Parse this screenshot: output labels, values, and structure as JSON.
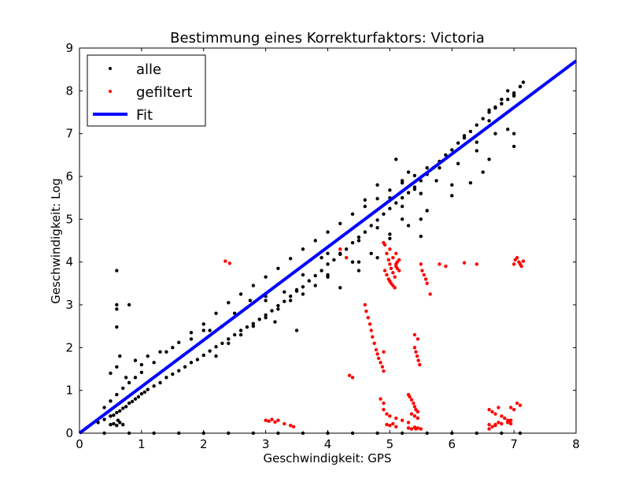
{
  "chart_data": {
    "type": "scatter",
    "title": "Bestimmung eines Korrekturfaktors: Victoria",
    "xlabel": "Geschwindigkeit: GPS",
    "ylabel": "Geschwindigkeit: Log",
    "xlim": [
      0,
      8
    ],
    "ylim": [
      0,
      9
    ],
    "xticks": [
      "0",
      "1",
      "2",
      "3",
      "4",
      "5",
      "6",
      "7",
      "8"
    ],
    "yticks": [
      "0",
      "1",
      "2",
      "3",
      "4",
      "5",
      "6",
      "7",
      "8",
      "9"
    ],
    "grid": false,
    "legend_position": "top-left",
    "colors": {
      "alle": "#000000",
      "gefiltert": "#ff0000",
      "fit": "#0000ff"
    },
    "series": [
      {
        "name": "alle",
        "kind": "points",
        "x": [
          0.3,
          0.4,
          0.5,
          0.55,
          0.6,
          0.65,
          0.7,
          0.75,
          0.8,
          0.85,
          0.9,
          0.95,
          1.0,
          1.05,
          1.1,
          1.2,
          1.3,
          1.4,
          1.5,
          1.6,
          1.7,
          1.8,
          1.9,
          2.0,
          2.1,
          2.2,
          2.3,
          2.4,
          2.5,
          2.6,
          2.7,
          2.8,
          2.9,
          3.0,
          3.1,
          3.2,
          3.3,
          3.4,
          3.5,
          3.6,
          3.7,
          3.8,
          3.9,
          4.0,
          4.1,
          4.2,
          4.3,
          4.4,
          4.5,
          4.6,
          4.7,
          4.8,
          4.9,
          5.0,
          5.1,
          5.2,
          5.3,
          5.4,
          5.5,
          5.6,
          5.7,
          5.8,
          5.9,
          6.0,
          6.1,
          6.2,
          6.3,
          6.4,
          6.5,
          6.6,
          6.7,
          6.8,
          6.9,
          7.0,
          7.1,
          7.15,
          0.4,
          0.5,
          0.6,
          0.7,
          0.8,
          0.9,
          1.0,
          1.2,
          1.4,
          1.6,
          1.8,
          2.0,
          2.2,
          2.4,
          2.6,
          2.8,
          3.0,
          3.2,
          3.4,
          3.6,
          3.8,
          4.0,
          4.2,
          4.4,
          4.6,
          4.8,
          5.0,
          5.2,
          5.4,
          5.6,
          6.6,
          6.8,
          7.0,
          0.5,
          0.55,
          0.6,
          0.62,
          0.65,
          0.7,
          0.5,
          0.6,
          0.65,
          0.75,
          0.6,
          0.6,
          0.6,
          0.6,
          0.8,
          0.9,
          1.0,
          1.1,
          1.5,
          1.8,
          2.1,
          2.3,
          2.5,
          2.75,
          3.15,
          3.3,
          3.6,
          3.9,
          4.2,
          4.5,
          4.8,
          5.2,
          5.5,
          5.75,
          6.1,
          6.4,
          6.7,
          2.2,
          2.4,
          2.6,
          2.8,
          3.0,
          3.2,
          3.4,
          3.6,
          3.8,
          4.0,
          4.4,
          4.7,
          5.0,
          5.3,
          5.6,
          6.0,
          6.3,
          3.0,
          3.5,
          4.0,
          4.5,
          5.0,
          5.5,
          6.0,
          6.5,
          7.0,
          1.3,
          2.0,
          3.0,
          4.0,
          4.6,
          4.8,
          5.0,
          5.1,
          5.2,
          5.3,
          5.4,
          5.5,
          5.6,
          6.6,
          6.7,
          6.8,
          6.9,
          7.0,
          7.1,
          3.5,
          4.2,
          4.5,
          4.8,
          5.2,
          5.5,
          5.8,
          6.2,
          6.4,
          6.6,
          6.9,
          7.0,
          0.4,
          0.8,
          1.2,
          1.6,
          2.0,
          2.4,
          2.8,
          3.2,
          3.6,
          4.0,
          4.4,
          4.8,
          5.2,
          5.6,
          6.0,
          6.4,
          6.8,
          7.1
        ],
        "y": [
          0.25,
          0.32,
          0.4,
          0.42,
          0.48,
          0.52,
          0.58,
          0.62,
          0.7,
          0.74,
          0.8,
          0.85,
          0.92,
          0.96,
          1.02,
          1.1,
          1.18,
          1.3,
          1.38,
          1.46,
          1.55,
          1.65,
          1.72,
          1.82,
          1.92,
          2.02,
          2.1,
          2.2,
          2.3,
          2.4,
          2.48,
          2.56,
          2.66,
          2.76,
          2.86,
          2.98,
          3.08,
          3.2,
          3.32,
          3.42,
          3.56,
          3.68,
          3.8,
          3.95,
          4.05,
          4.18,
          4.3,
          4.45,
          4.58,
          4.7,
          4.85,
          4.98,
          5.12,
          5.25,
          5.38,
          5.5,
          5.62,
          5.75,
          5.9,
          6.05,
          6.2,
          6.35,
          6.5,
          6.62,
          6.78,
          6.95,
          7.05,
          7.2,
          7.35,
          7.5,
          7.62,
          7.7,
          7.8,
          7.95,
          8.1,
          8.2,
          0.6,
          0.75,
          0.9,
          1.05,
          1.18,
          1.3,
          1.42,
          1.65,
          1.9,
          2.12,
          2.35,
          2.55,
          2.8,
          3.05,
          3.25,
          3.45,
          3.65,
          3.85,
          4.08,
          4.3,
          4.5,
          4.7,
          4.9,
          5.12,
          5.3,
          5.48,
          5.68,
          5.85,
          6.02,
          6.2,
          7.55,
          7.7,
          7.88,
          0.2,
          0.22,
          0.18,
          0.3,
          0.25,
          0.2,
          1.4,
          1.55,
          1.8,
          1.3,
          3.8,
          2.9,
          2.48,
          3.0,
          3.0,
          1.7,
          1.6,
          1.8,
          2.0,
          2.2,
          2.4,
          2.5,
          2.8,
          3.1,
          2.6,
          3.3,
          3.7,
          4.1,
          4.2,
          4.5,
          4.8,
          5.3,
          5.6,
          5.9,
          6.3,
          6.6,
          7.0,
          1.8,
          2.1,
          2.3,
          2.5,
          2.7,
          2.9,
          3.1,
          3.25,
          3.45,
          3.65,
          4.0,
          4.2,
          4.55,
          4.85,
          5.2,
          5.55,
          5.85,
          3.1,
          3.35,
          3.7,
          4.0,
          4.65,
          5.0,
          5.8,
          6.1,
          7.0,
          1.9,
          2.4,
          3.2,
          4.2,
          5.45,
          5.8,
          5.5,
          6.4,
          5.9,
          6.1,
          5.7,
          5.6,
          5.2,
          7.3,
          7.6,
          7.8,
          8.0,
          7.9,
          8.1,
          2.4,
          3.4,
          3.8,
          4.1,
          5.0,
          4.6,
          6.2,
          6.9,
          6.8,
          6.4,
          7.1,
          6.7,
          0.0,
          0.0,
          0.0,
          0.0,
          0.0,
          0.0,
          0.0,
          0.0,
          0.0,
          0.0,
          0.0,
          0.0,
          0.0,
          0.0,
          0.0,
          0.0,
          0.0,
          0.0
        ]
      },
      {
        "name": "gefiltert",
        "kind": "points",
        "x": [
          2.35,
          2.42,
          3.0,
          3.05,
          3.1,
          3.15,
          3.2,
          3.3,
          3.4,
          3.45,
          4.35,
          4.4,
          4.6,
          4.62,
          4.65,
          4.68,
          4.7,
          4.72,
          4.75,
          4.78,
          4.8,
          4.82,
          4.85,
          4.88,
          4.9,
          4.9,
          4.92,
          4.95,
          4.98,
          5.0,
          5.02,
          5.05,
          5.08,
          5.1,
          5.12,
          5.15,
          4.92,
          4.95,
          4.98,
          5.0,
          5.02,
          5.05,
          5.08,
          5.05,
          5.1,
          5.12,
          5.3,
          5.32,
          5.35,
          5.38,
          5.4,
          5.42,
          5.45,
          5.35,
          5.4,
          5.45,
          5.4,
          5.45,
          5.5,
          5.52,
          5.55,
          5.58,
          5.6,
          5.65,
          5.4,
          5.42,
          5.44,
          5.46,
          5.48,
          5.3,
          5.35,
          5.4,
          5.42,
          5.45,
          5.5,
          4.95,
          5.0,
          5.05,
          5.1,
          4.9,
          4.95,
          5.0,
          5.1,
          5.2,
          5.3,
          4.85,
          4.9,
          5.8,
          5.9,
          6.2,
          6.4,
          6.6,
          6.7,
          6.8,
          6.9,
          6.95,
          7.0,
          7.02,
          7.05,
          7.08,
          7.1,
          7.12,
          7.15,
          6.95,
          7.0,
          7.05,
          7.1,
          6.6,
          6.65,
          6.7,
          6.75,
          6.6,
          6.65,
          6.7,
          6.75,
          6.8,
          6.85,
          6.9,
          6.92,
          6.95,
          4.9,
          5.0,
          5.1,
          5.15,
          4.2,
          4.3
        ],
        "y": [
          4.02,
          3.97,
          0.3,
          0.28,
          0.32,
          0.26,
          0.3,
          0.22,
          0.18,
          0.15,
          1.35,
          1.3,
          3.0,
          2.85,
          2.7,
          2.55,
          2.4,
          2.25,
          2.1,
          1.95,
          1.85,
          1.75,
          1.65,
          1.55,
          1.45,
          1.9,
          4.4,
          4.2,
          4.05,
          3.95,
          3.85,
          3.75,
          3.65,
          3.9,
          4.0,
          4.05,
          3.8,
          3.7,
          3.6,
          3.55,
          3.5,
          3.45,
          3.4,
          4.1,
          3.95,
          3.85,
          0.9,
          0.85,
          0.78,
          0.7,
          0.62,
          0.55,
          0.5,
          0.45,
          0.4,
          0.35,
          2.3,
          2.2,
          3.95,
          3.8,
          3.7,
          3.6,
          3.5,
          3.25,
          2.0,
          1.9,
          1.8,
          1.7,
          1.6,
          0.12,
          0.1,
          0.14,
          0.1,
          0.12,
          0.1,
          0.2,
          0.18,
          0.22,
          0.15,
          0.55,
          0.45,
          0.4,
          0.35,
          0.3,
          0.25,
          0.8,
          0.7,
          3.95,
          3.9,
          3.98,
          3.95,
          0.2,
          0.18,
          0.22,
          0.25,
          0.3,
          3.95,
          4.05,
          4.1,
          4.0,
          3.95,
          3.9,
          4.02,
          0.6,
          0.55,
          0.7,
          0.65,
          0.1,
          0.15,
          0.2,
          0.25,
          0.55,
          0.5,
          0.45,
          0.6,
          0.4,
          0.35,
          0.3,
          0.28,
          0.22,
          4.45,
          4.3,
          4.2,
          3.8,
          4.3,
          4.1
        ]
      },
      {
        "name": "Fit",
        "kind": "line",
        "x": [
          0,
          8
        ],
        "y": [
          0,
          8.7
        ]
      }
    ]
  }
}
